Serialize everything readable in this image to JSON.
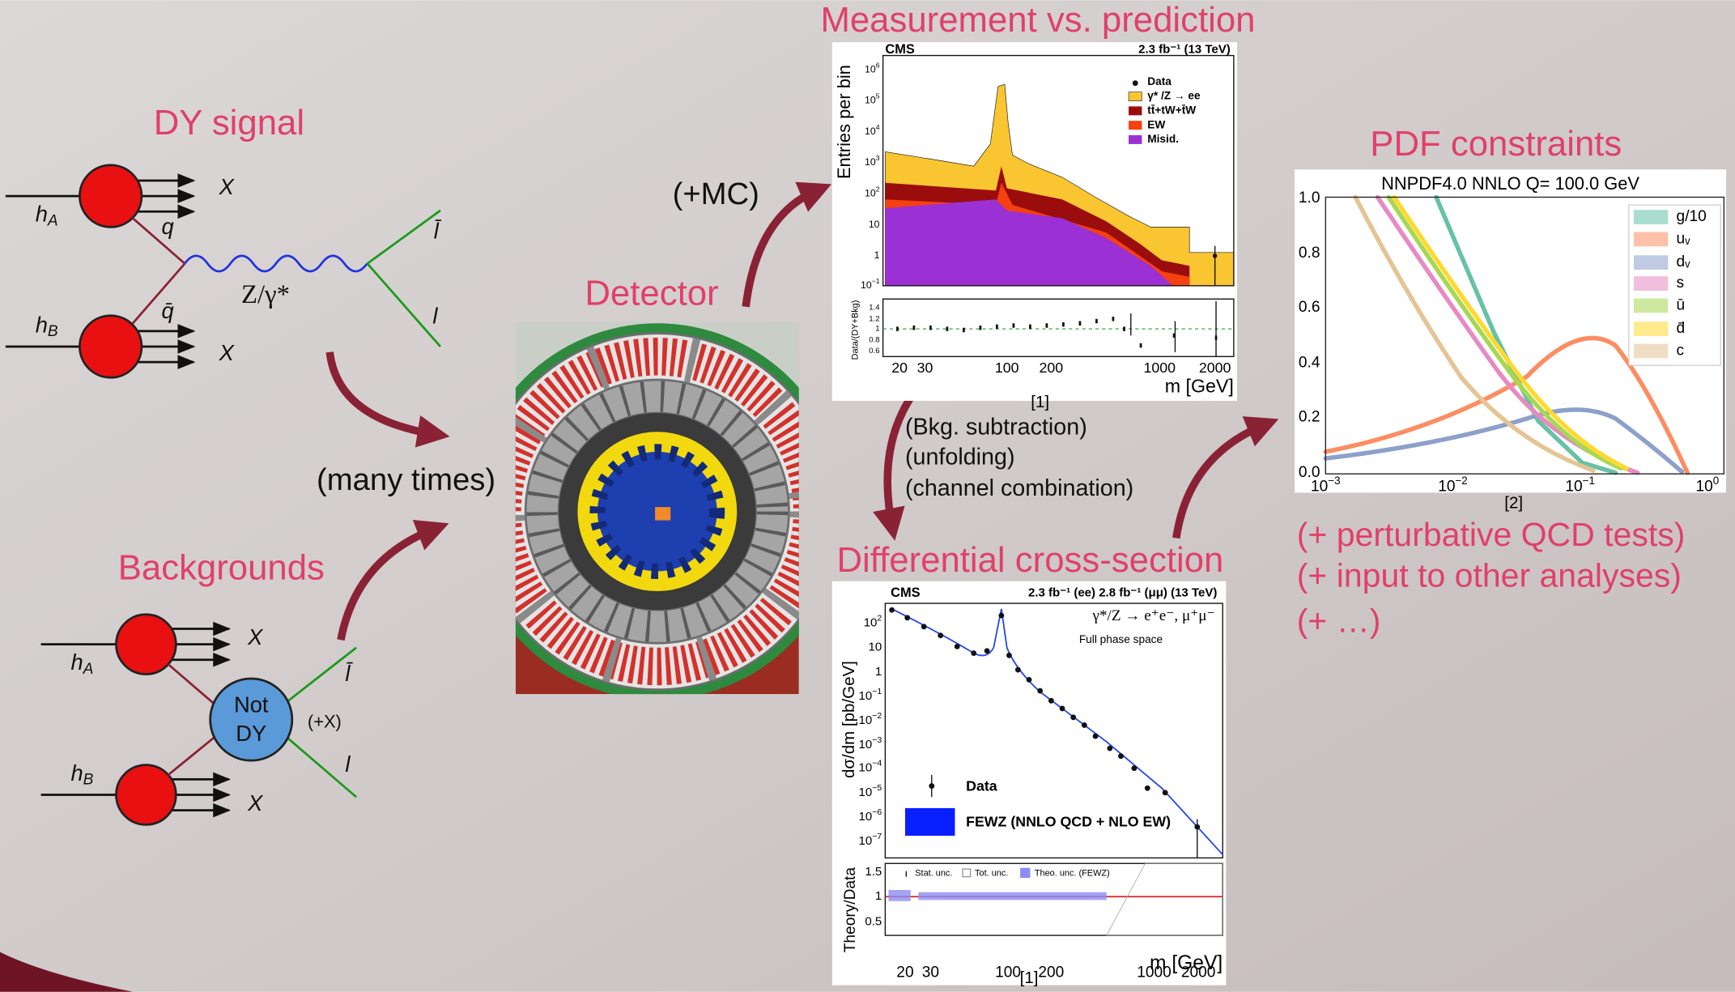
{
  "titles": {
    "dy_signal": "DY signal",
    "backgrounds": "Backgrounds",
    "detector": "Detector",
    "measurement": "Measurement vs. prediction",
    "differential": "Differential cross-section",
    "pdf": "PDF constraints"
  },
  "annotations": {
    "mc": "(+MC)",
    "many_times": "(many times)",
    "steps": [
      "(Bkg. subtraction)",
      "(unfolding)",
      "(channel combination)"
    ],
    "outcomes": [
      "(+ perturbative QCD tests)",
      "(+ input to other analyses)",
      "(+ …)"
    ]
  },
  "signal_diagram": {
    "x_top": "X",
    "x_bottom": "X",
    "h_a": {
      "base": "h",
      "sub": "A"
    },
    "h_b": {
      "base": "h",
      "sub": "B"
    },
    "q": "q",
    "qbar": "q̄",
    "boson": "Z/γ*",
    "lbar": "l̄",
    "l": "l"
  },
  "background_diagram": {
    "x_top": "X",
    "x_bottom": "X",
    "h_a": {
      "base": "h",
      "sub": "A"
    },
    "h_b": {
      "base": "h",
      "sub": "B"
    },
    "blob": [
      "Not",
      "DY"
    ],
    "plus_x": "(+X)",
    "lbar": "l̄",
    "l": "l"
  },
  "plot_measurement": {
    "experiment": "CMS",
    "lumi": "2.3 fb⁻¹ (13 TeV)",
    "y_label": "Entries per bin",
    "ratio_label": "Data/(DY+Bkg)",
    "x_label": "m [GeV]",
    "legend": [
      "Data",
      "γ* /Z → ee",
      "tt̄+tW+t̄W",
      "EW",
      "Misid."
    ],
    "y_ticks": [
      {
        "base": "10",
        "exp": "6"
      },
      {
        "base": "10",
        "exp": "5"
      },
      {
        "base": "10",
        "exp": "4"
      },
      {
        "base": "10",
        "exp": "3"
      },
      {
        "base": "10",
        "exp": "2"
      },
      "10",
      "1",
      {
        "base": "10",
        "exp": "−1"
      }
    ],
    "ratio_ticks": [
      "1.4",
      "1.2",
      "1",
      "0.8",
      "0.6"
    ],
    "x_ticks": [
      "20",
      "30",
      "100",
      "200",
      "1000",
      "2000"
    ],
    "ref": "[1]"
  },
  "plot_cross_section": {
    "experiment": "CMS",
    "lumi": "2.3 fb⁻¹ (ee) 2.8 fb⁻¹ (μμ) (13 TeV)",
    "process": "γ*/Z → e⁺e⁻, μ⁺μ⁻",
    "phase_space": "Full phase space",
    "y_label": "dσ/dm [pb/GeV]",
    "ratio_label": "Theory/Data",
    "x_label": "m [GeV]",
    "legend": [
      "Data",
      "FEWZ (NNLO QCD + NLO EW)"
    ],
    "ratio_legend": [
      "Stat. unc.",
      "Tot. unc.",
      "Theo. unc. (FEWZ)"
    ],
    "y_ticks": [
      {
        "base": "10",
        "exp": "2"
      },
      "10",
      "1",
      {
        "base": "10",
        "exp": "−1"
      },
      {
        "base": "10",
        "exp": "−2"
      },
      {
        "base": "10",
        "exp": "−3"
      },
      {
        "base": "10",
        "exp": "−4"
      },
      {
        "base": "10",
        "exp": "−5"
      },
      {
        "base": "10",
        "exp": "−6"
      },
      {
        "base": "10",
        "exp": "−7"
      }
    ],
    "ratio_ticks": [
      "1.5",
      "1",
      "0.5"
    ],
    "x_ticks": [
      "20",
      "30",
      "100",
      "200",
      "1000",
      "2000"
    ],
    "ref": "[1]"
  },
  "plot_pdf": {
    "title": "NNPDF4.0 NNLO Q= 100.0 GeV",
    "legend": [
      "g/10",
      "uᵥ",
      "dᵥ",
      "s",
      "ū",
      "d̄",
      "c"
    ],
    "y_ticks": [
      "1.0",
      "0.8",
      "0.6",
      "0.4",
      "0.2",
      "0.0"
    ],
    "x_ticks": [
      {
        "base": "10",
        "exp": "−3"
      },
      {
        "base": "10",
        "exp": "−2"
      },
      {
        "base": "10",
        "exp": "−1"
      },
      {
        "base": "10",
        "exp": "0"
      }
    ],
    "ref": "[2]"
  }
}
